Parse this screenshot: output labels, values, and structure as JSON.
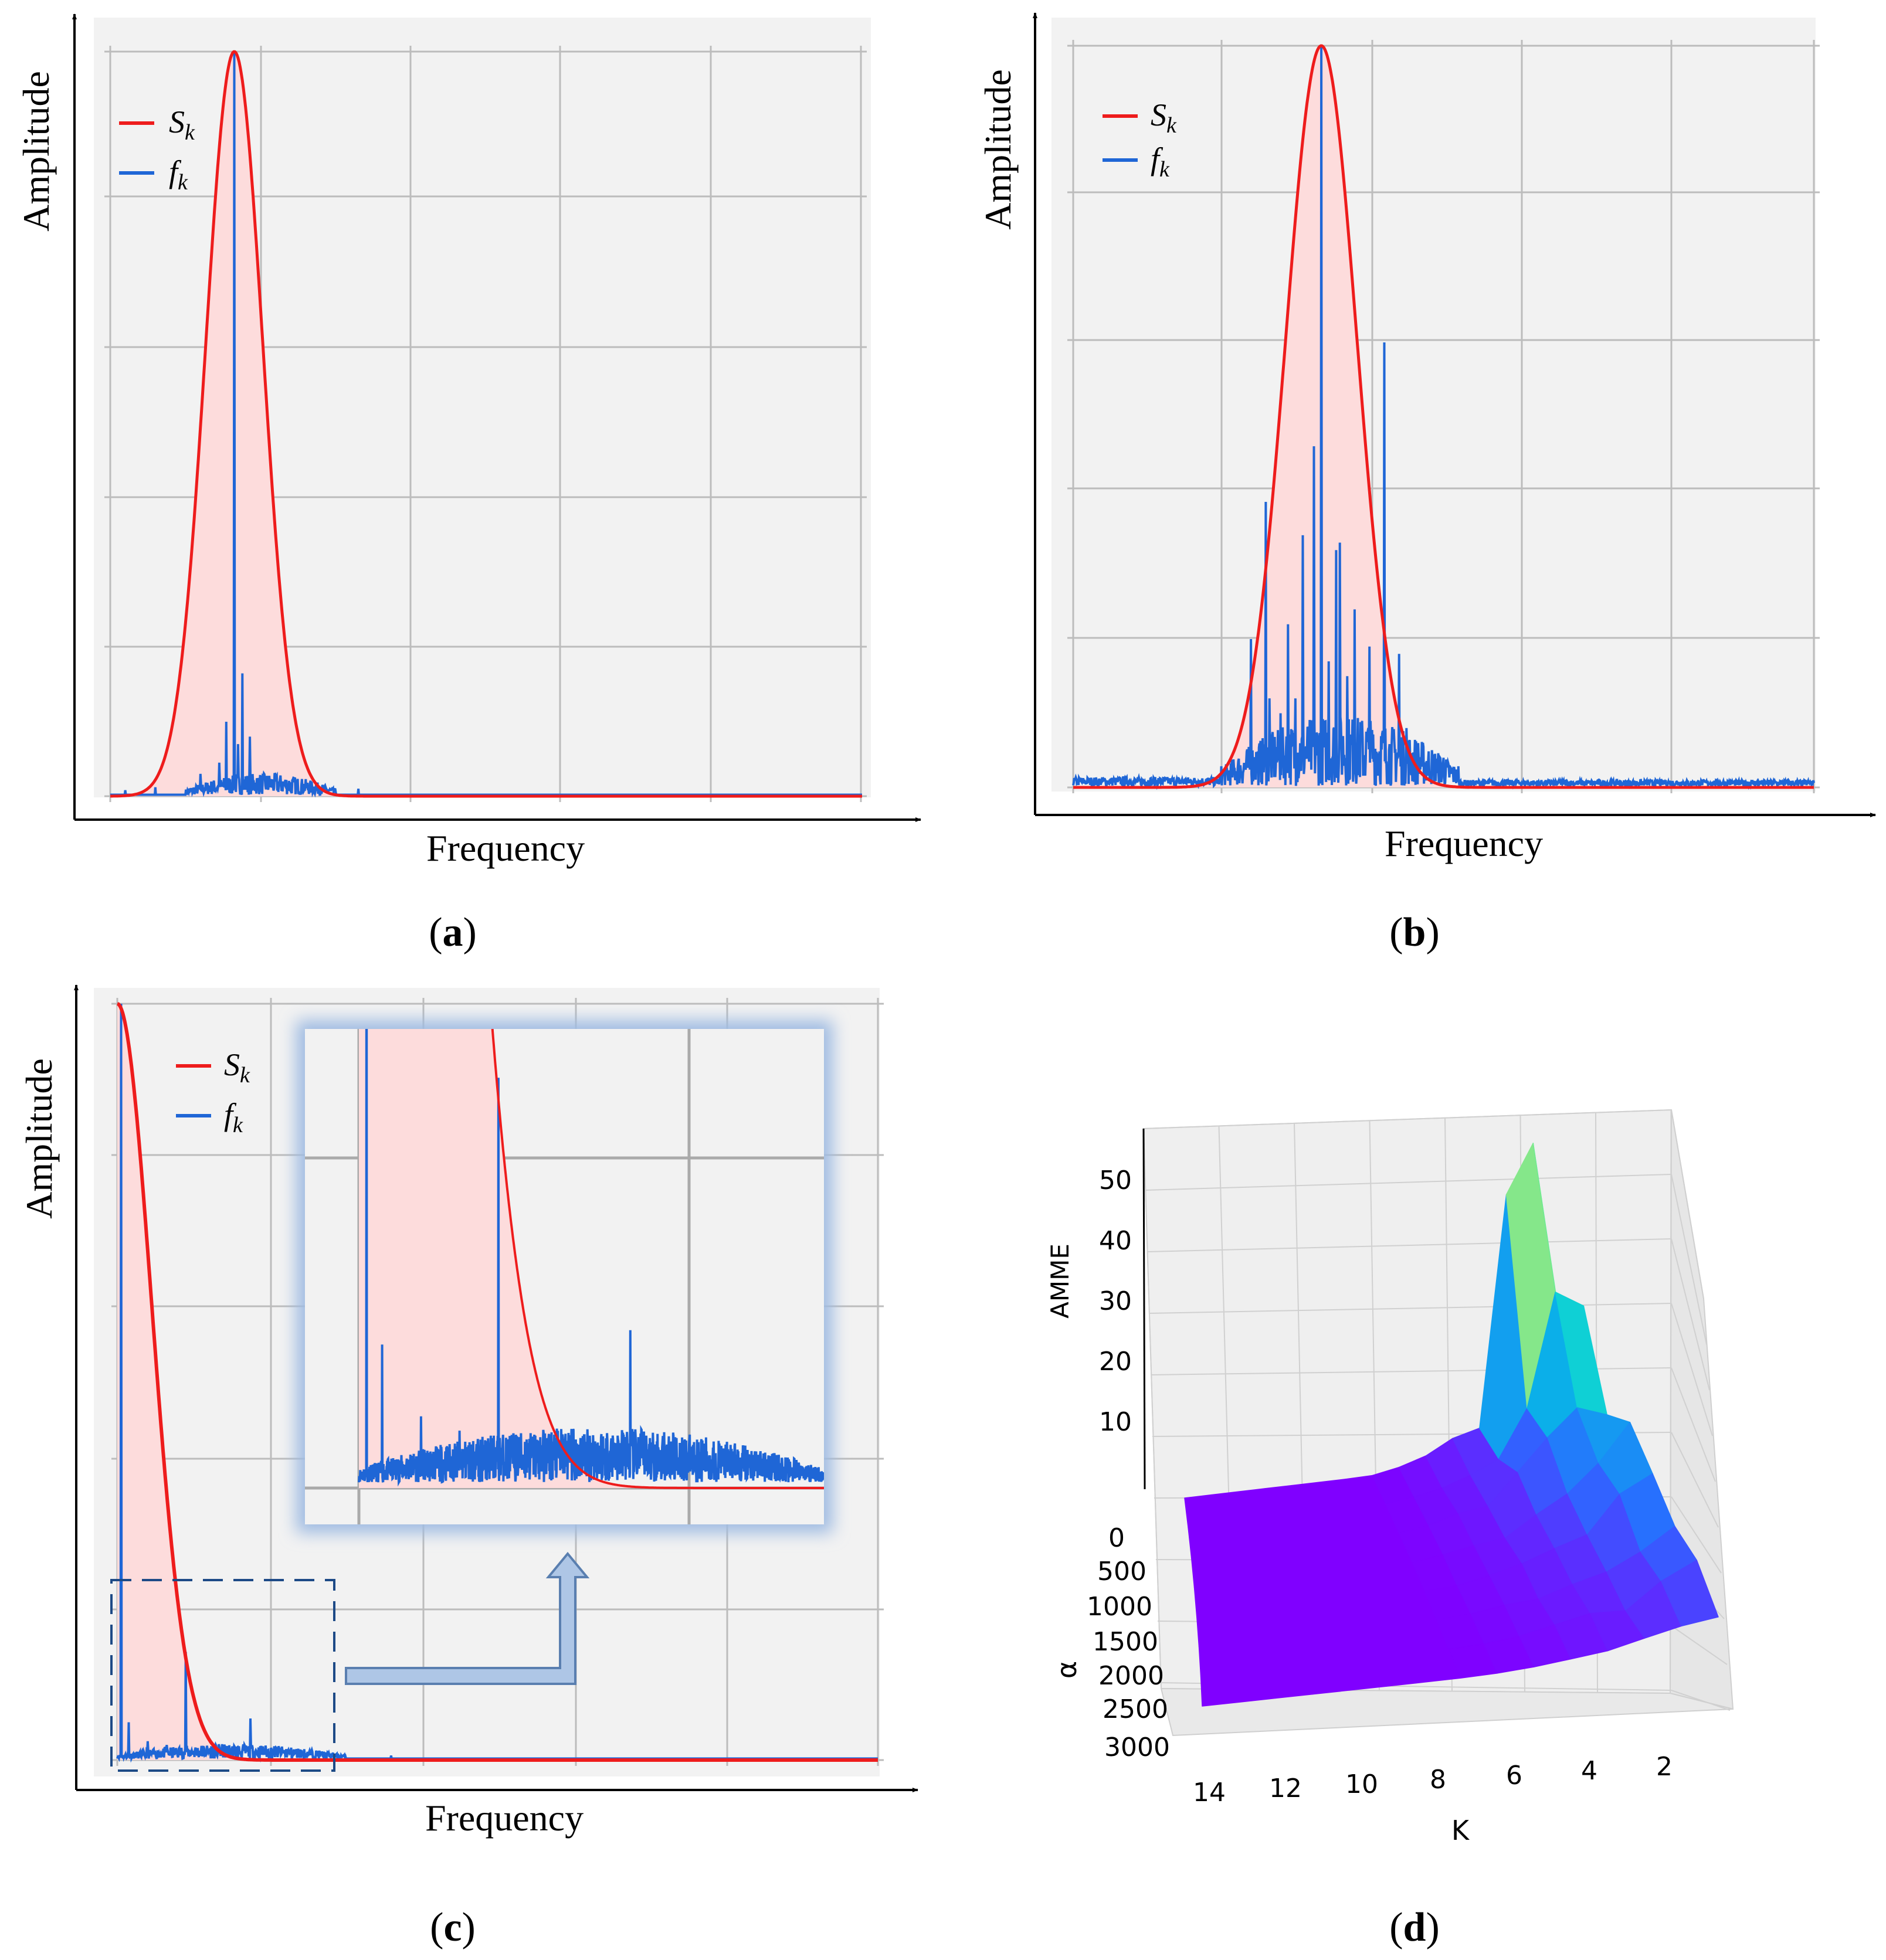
{
  "figure": {
    "panels": [
      {
        "label_open": "(",
        "label_letter": "a",
        "label_close": ")"
      },
      {
        "label_open": "(",
        "label_letter": "b",
        "label_close": ")"
      },
      {
        "label_open": "(",
        "label_letter": "c",
        "label_close": ")"
      },
      {
        "label_open": "(",
        "label_letter": "d",
        "label_close": ")"
      }
    ]
  },
  "chart_data": [
    {
      "panel": "a",
      "type": "line",
      "xlabel": "Frequency",
      "ylabel": "Amplitude",
      "grid": true,
      "legend": {
        "position": "top-left",
        "entries": [
          {
            "symbol": "S",
            "subscript": "k",
            "color": "#ee1c1c"
          },
          {
            "symbol": "f",
            "subscript": "k",
            "color": "#1f66d6"
          }
        ]
      },
      "xlim": [
        0,
        1
      ],
      "ylim": [
        0,
        1
      ],
      "series": [
        {
          "name": "S_k",
          "kind": "gaussian",
          "center": 0.165,
          "width": 0.038,
          "amplitude": 1.0,
          "fill": true
        },
        {
          "name": "f_k",
          "kind": "spikes",
          "peaks": [
            [
              0.165,
              1.0
            ],
            [
              0.176,
              0.165
            ],
            [
              0.154,
              0.1
            ],
            [
              0.17,
              0.07
            ],
            [
              0.186,
              0.08
            ],
            [
              0.145,
              0.045
            ],
            [
              0.12,
              0.03
            ],
            [
              0.06,
              0.012
            ],
            [
              0.33,
              0.01
            ],
            [
              0.02,
              0.008
            ]
          ],
          "noise_range": [
            0.1,
            0.3
          ],
          "noise_level": 0.018
        }
      ]
    },
    {
      "panel": "b",
      "type": "line",
      "xlabel": "Frequency",
      "ylabel": "Amplitude",
      "grid": true,
      "legend": {
        "position": "top-left",
        "entries": [
          {
            "symbol": "S",
            "subscript": "k",
            "color": "#ee1c1c"
          },
          {
            "symbol": "f",
            "subscript": "k",
            "color": "#1f66d6"
          }
        ]
      },
      "xlim": [
        0,
        1
      ],
      "ylim": [
        0,
        1
      ],
      "series": [
        {
          "name": "S_k",
          "kind": "gaussian",
          "center": 0.335,
          "width": 0.048,
          "amplitude": 1.0,
          "fill": true
        },
        {
          "name": "f_k",
          "kind": "spikes",
          "peaks": [
            [
              0.335,
              1.0
            ],
            [
              0.42,
              0.6
            ],
            [
              0.325,
              0.46
            ],
            [
              0.26,
              0.385
            ],
            [
              0.31,
              0.34
            ],
            [
              0.36,
              0.33
            ],
            [
              0.355,
              0.32
            ],
            [
              0.38,
              0.24
            ],
            [
              0.24,
              0.2
            ],
            [
              0.42,
              0.19
            ],
            [
              0.44,
              0.18
            ],
            [
              0.4,
              0.19
            ],
            [
              0.29,
              0.22
            ],
            [
              0.265,
              0.12
            ],
            [
              0.5,
              0.04
            ],
            [
              0.45,
              0.08
            ],
            [
              0.37,
              0.15
            ],
            [
              0.345,
              0.17
            ],
            [
              0.3,
              0.12
            ],
            [
              0.28,
              0.1
            ]
          ],
          "noise_range": [
            0.2,
            0.52
          ],
          "noise_level": 0.06,
          "noise_tail": [
            [
              0.0,
              0.2,
              0.012
            ],
            [
              0.52,
              1.0,
              0.008
            ]
          ]
        }
      ]
    },
    {
      "panel": "c",
      "type": "line",
      "xlabel": "Frequency",
      "ylabel": "Amplitude",
      "grid": true,
      "legend": {
        "position": "top-left",
        "entries": [
          {
            "symbol": "S",
            "subscript": "k",
            "color": "#ee1c1c"
          },
          {
            "symbol": "f",
            "subscript": "k",
            "color": "#1f66d6"
          }
        ]
      },
      "xlim": [
        0,
        1
      ],
      "ylim": [
        0,
        1
      ],
      "series": [
        {
          "name": "S_k",
          "kind": "half-gaussian",
          "center": 0.0,
          "width": 0.045,
          "amplitude": 1.0,
          "fill": true
        },
        {
          "name": "f_k",
          "kind": "spikes",
          "peaks": [
            [
              0.005,
              1.0
            ],
            [
              0.09,
              0.143
            ],
            [
              0.175,
              0.055
            ],
            [
              0.015,
              0.05
            ],
            [
              0.04,
              0.025
            ],
            [
              0.065,
              0.02
            ],
            [
              0.25,
              0.01
            ],
            [
              0.36,
              0.006
            ]
          ],
          "noise_range": [
            0.0,
            0.3
          ],
          "noise_level": 0.012
        },
        {
          "name": "zoom",
          "kind": "inset",
          "source_range": [
            0.0,
            0.3
          ],
          "ylim": [
            0,
            0.16
          ]
        }
      ]
    },
    {
      "panel": "d",
      "type": "surface",
      "xlabel": "K",
      "ylabel": "α",
      "zlabel": "AMME",
      "x_ticks": [
        "14",
        "12",
        "10",
        "8",
        "6",
        "4",
        "2"
      ],
      "y_ticks": [
        "0",
        "500",
        "1000",
        "1500",
        "2000",
        "2500",
        "3000"
      ],
      "z_ticks": [
        "10",
        "20",
        "30",
        "40",
        "50"
      ],
      "zlim": [
        0,
        55
      ],
      "colormap": "rainbow",
      "grid": true
    }
  ]
}
